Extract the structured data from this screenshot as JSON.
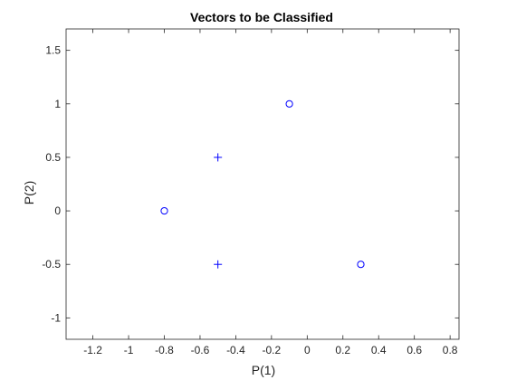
{
  "chart_data": {
    "type": "scatter",
    "title": "Vectors to be Classified",
    "xlabel": "P(1)",
    "ylabel": "P(2)",
    "xlim": [
      -1.35,
      0.85
    ],
    "ylim": [
      -1.2,
      1.7
    ],
    "xticks": [
      -1.2,
      -1,
      -0.8,
      -0.6,
      -0.4,
      -0.2,
      0,
      0.2,
      0.4,
      0.6,
      0.8
    ],
    "yticks": [
      -1,
      -0.5,
      0,
      0.5,
      1,
      1.5
    ],
    "grid": false,
    "marker_color": "#0000ff",
    "series": [
      {
        "marker": "plus",
        "points": [
          [
            -0.5,
            0.5
          ],
          [
            -0.5,
            -0.5
          ]
        ]
      },
      {
        "marker": "circle",
        "points": [
          [
            -0.1,
            1.0
          ],
          [
            -0.8,
            0.0
          ],
          [
            0.3,
            -0.5
          ]
        ]
      }
    ]
  }
}
